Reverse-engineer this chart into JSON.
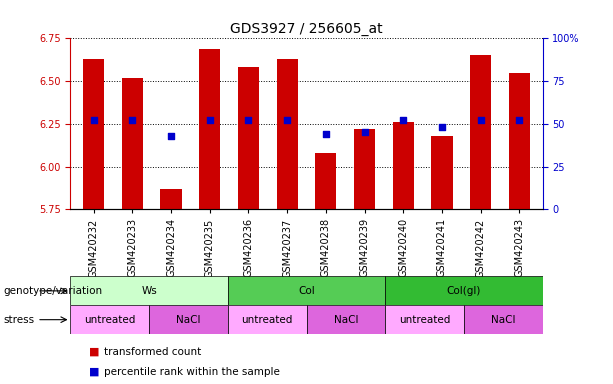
{
  "title": "GDS3927 / 256605_at",
  "samples": [
    "GSM420232",
    "GSM420233",
    "GSM420234",
    "GSM420235",
    "GSM420236",
    "GSM420237",
    "GSM420238",
    "GSM420239",
    "GSM420240",
    "GSM420241",
    "GSM420242",
    "GSM420243"
  ],
  "transformed_count": [
    6.63,
    6.52,
    5.87,
    6.69,
    6.58,
    6.63,
    6.08,
    6.22,
    6.26,
    6.18,
    6.65,
    6.55
  ],
  "percentile_rank": [
    52,
    52,
    43,
    52,
    52,
    52,
    44,
    45,
    52,
    48,
    52,
    52
  ],
  "ylim_left": [
    5.75,
    6.75
  ],
  "ylim_right": [
    0,
    100
  ],
  "yticks_left": [
    5.75,
    6.0,
    6.25,
    6.5,
    6.75
  ],
  "yticks_right": [
    0,
    25,
    50,
    75,
    100
  ],
  "ytick_labels_right": [
    "0",
    "25",
    "50",
    "75",
    "100%"
  ],
  "bar_color": "#CC0000",
  "dot_color": "#0000CC",
  "bar_bottom": 5.75,
  "genotype_groups": [
    {
      "label": "Ws",
      "start": 0,
      "end": 4,
      "color": "#ccffcc"
    },
    {
      "label": "Col",
      "start": 4,
      "end": 8,
      "color": "#55cc55"
    },
    {
      "label": "Col(gl)",
      "start": 8,
      "end": 12,
      "color": "#33bb33"
    }
  ],
  "stress_groups": [
    {
      "label": "untreated",
      "start": 0,
      "end": 2,
      "color": "#ffaaff"
    },
    {
      "label": "NaCl",
      "start": 2,
      "end": 4,
      "color": "#dd66dd"
    },
    {
      "label": "untreated",
      "start": 4,
      "end": 6,
      "color": "#ffaaff"
    },
    {
      "label": "NaCl",
      "start": 6,
      "end": 8,
      "color": "#dd66dd"
    },
    {
      "label": "untreated",
      "start": 8,
      "end": 10,
      "color": "#ffaaff"
    },
    {
      "label": "NaCl",
      "start": 10,
      "end": 12,
      "color": "#dd66dd"
    }
  ],
  "legend_items": [
    {
      "label": "transformed count",
      "color": "#CC0000"
    },
    {
      "label": "percentile rank within the sample",
      "color": "#0000CC"
    }
  ],
  "left_axis_color": "#CC0000",
  "right_axis_color": "#0000CC",
  "title_fontsize": 10,
  "tick_fontsize": 7,
  "annot_fontsize": 7.5,
  "label_fontsize": 7.5
}
